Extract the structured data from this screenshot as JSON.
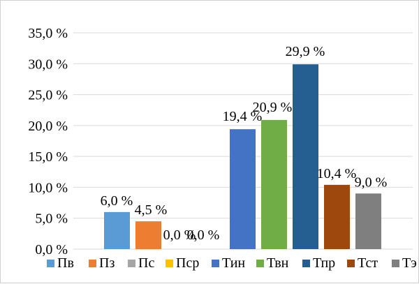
{
  "chart_data": {
    "type": "bar",
    "categories": [
      "Пв",
      "Пз",
      "Пс",
      "Пср",
      "Тин",
      "Твн",
      "Тпр",
      "Тст",
      "Тэ"
    ],
    "values": [
      6.0,
      4.5,
      0.0,
      0.0,
      19.4,
      20.9,
      29.9,
      10.4,
      9.0
    ],
    "data_labels": [
      "6,0 %",
      "4,5 %",
      "0,0 %",
      "0,0 %",
      "19,4 %",
      "20,9 %",
      "29,9 %",
      "10,4 %",
      "9,0 %"
    ],
    "colors": [
      "#5b9bd5",
      "#ed7d31",
      "#a5a5a5",
      "#ffc000",
      "#4472c4",
      "#70ad47",
      "#255e91",
      "#9e480e",
      "#7f7f7f"
    ],
    "ylim": [
      0,
      35
    ],
    "yticks": [
      0,
      5,
      10,
      15,
      20,
      25,
      30,
      35
    ],
    "ytick_labels": [
      "0,0 %",
      "5,0 %",
      "10,0 %",
      "15,0 %",
      "20,0 %",
      "25,0 %",
      "30,0 %",
      "35,0 %"
    ],
    "grid": true,
    "legend": "bottom",
    "title": "",
    "xlabel": "",
    "ylabel": ""
  }
}
